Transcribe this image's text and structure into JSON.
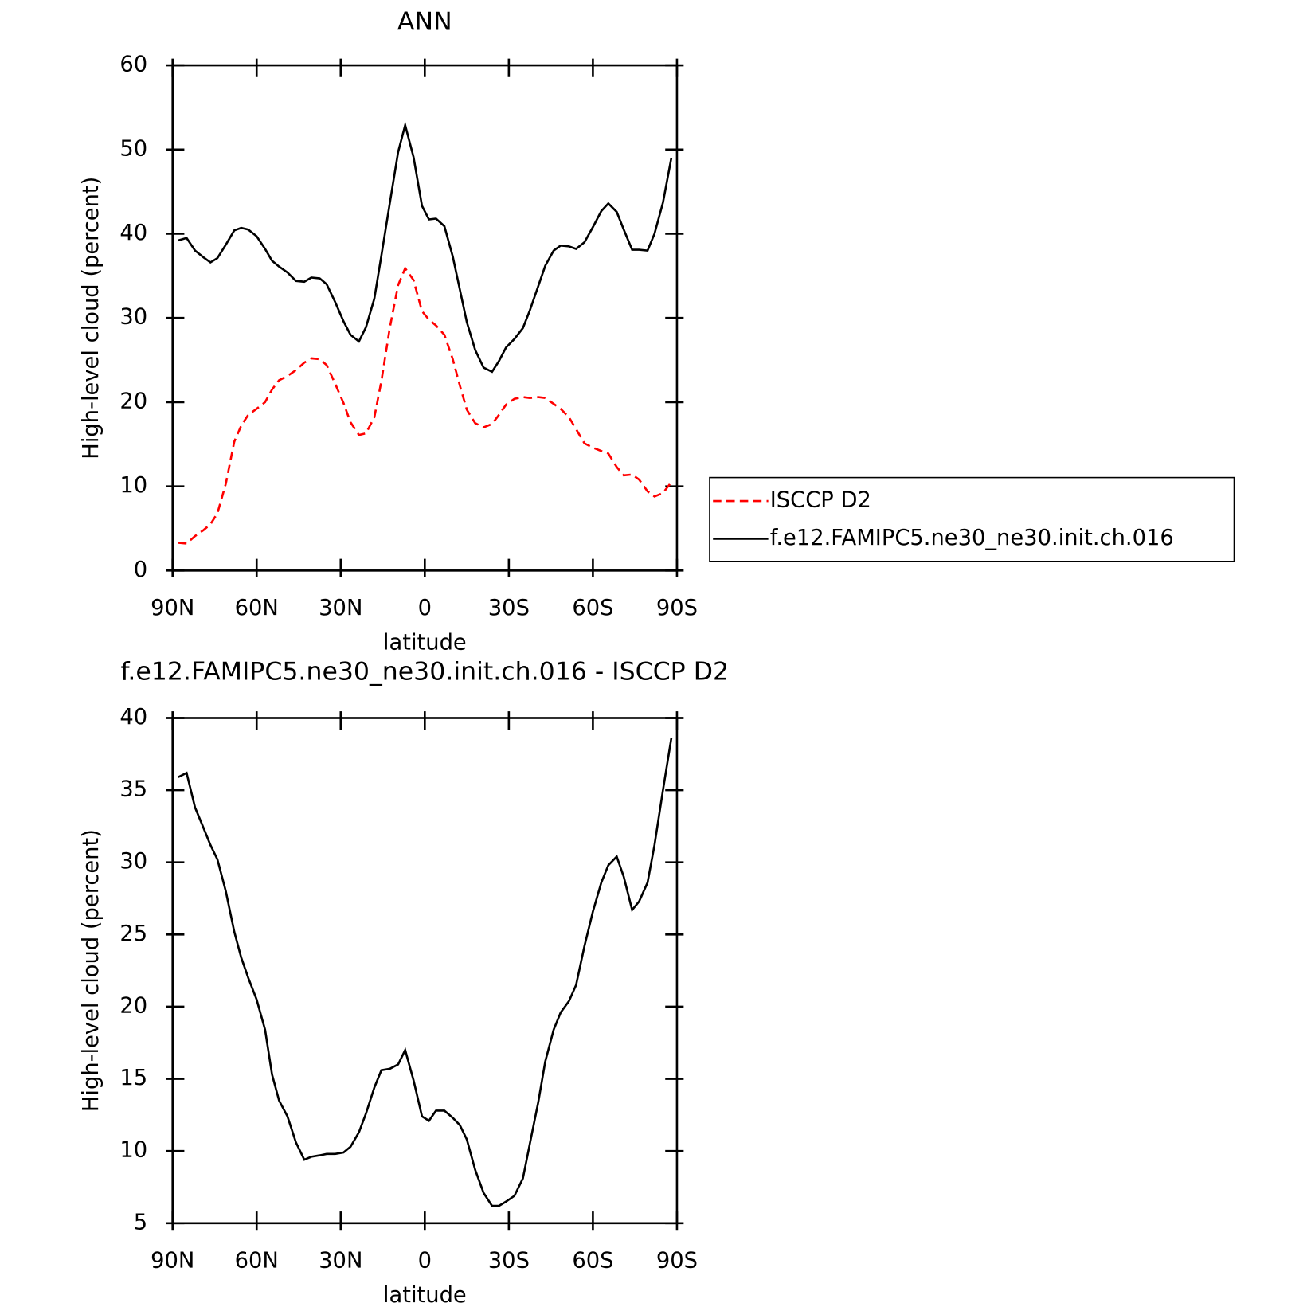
{
  "chart_data": [
    {
      "type": "line",
      "title": "ANN",
      "ylabel": "High-level cloud (percent)",
      "xlabel": "latitude",
      "x": [
        88,
        85,
        82,
        79,
        76.5,
        74,
        71,
        68,
        65.5,
        63,
        60,
        57,
        54.5,
        52,
        49,
        46,
        43,
        40.5,
        37.5,
        35,
        32,
        29,
        26.5,
        23.5,
        21,
        18,
        15.5,
        12.5,
        9.5,
        7,
        4,
        1,
        -1.5,
        -4,
        -7,
        -10,
        -12.5,
        -15,
        -18,
        -21,
        -24,
        -26.5,
        -29,
        -32,
        -35,
        -37.5,
        -40.5,
        -43,
        -46,
        -48.5,
        -51.5,
        -54,
        -57,
        -60,
        -63,
        -65.5,
        -68.5,
        -71,
        -74,
        -76.5,
        -79.5,
        -82,
        -85,
        -88
      ],
      "series": [
        {
          "name": "ISCCP D2",
          "color": "#ff0000",
          "dashed": true,
          "values": [
            3.3,
            3.2,
            4.1,
            4.8,
            5.5,
            6.8,
            10.3,
            15.3,
            17.2,
            18.5,
            19.2,
            20.0,
            21.5,
            22.6,
            23.1,
            23.8,
            24.7,
            25.2,
            25.1,
            24.4,
            22.2,
            19.9,
            17.6,
            16.1,
            16.3,
            18.2,
            22.5,
            28.8,
            33.9,
            35.9,
            34.5,
            30.8,
            29.8,
            29.1,
            28.0,
            25.1,
            22.0,
            19.1,
            17.5,
            17.0,
            17.4,
            18.5,
            19.7,
            20.4,
            20.6,
            20.5,
            20.6,
            20.5,
            19.8,
            19.2,
            18.2,
            16.8,
            15.1,
            14.6,
            14.2,
            13.9,
            12.3,
            11.3,
            11.4,
            10.8,
            9.4,
            8.8,
            9.2,
            10.5
          ]
        },
        {
          "name": "f.e12.FAMIPC5.ne30_ne30.init.ch.016",
          "color": "#000000",
          "dashed": false,
          "values": [
            39.2,
            39.5,
            38.0,
            37.2,
            36.6,
            37.1,
            38.7,
            40.4,
            40.7,
            40.5,
            39.7,
            38.2,
            36.8,
            36.1,
            35.4,
            34.4,
            34.3,
            34.8,
            34.7,
            34.0,
            31.9,
            29.6,
            28.0,
            27.2,
            28.9,
            32.3,
            37.4,
            43.6,
            49.7,
            52.9,
            49.1,
            43.3,
            41.7,
            41.8,
            40.9,
            37.3,
            33.4,
            29.5,
            26.2,
            24.1,
            23.6,
            24.9,
            26.5,
            27.5,
            28.8,
            30.9,
            33.8,
            36.2,
            38.0,
            38.6,
            38.5,
            38.2,
            39.0,
            40.8,
            42.7,
            43.6,
            42.6,
            40.5,
            38.1,
            38.1,
            38.0,
            40.0,
            43.7,
            49.0
          ]
        }
      ],
      "xlim": [
        90,
        -90
      ],
      "xticks": [
        {
          "value": 90,
          "label": "90N"
        },
        {
          "value": 60,
          "label": "60N"
        },
        {
          "value": 30,
          "label": "30N"
        },
        0,
        {
          "value": -30,
          "label": "30S"
        },
        {
          "value": -60,
          "label": "60S"
        },
        {
          "value": -90,
          "label": "90S"
        }
      ],
      "ylim": [
        0,
        60
      ],
      "yticks": [
        0,
        10,
        20,
        30,
        40,
        50,
        60
      ],
      "legend": "outside-right"
    },
    {
      "type": "line",
      "title": "f.e12.FAMIPC5.ne30_ne30.init.ch.016 - ISCCP D2",
      "ylabel": "High-level cloud (percent)",
      "xlabel": "latitude",
      "x": [
        88,
        85,
        82,
        79,
        76.5,
        74,
        71,
        68,
        65.5,
        63,
        60,
        57,
        54.5,
        52,
        49,
        46,
        43,
        40.5,
        37.5,
        35,
        32,
        29,
        26.5,
        23.5,
        21,
        18,
        15.5,
        12.5,
        9.5,
        7,
        4,
        1,
        -1.5,
        -4,
        -7,
        -10,
        -12.5,
        -15,
        -18,
        -21,
        -24,
        -26.5,
        -29,
        -32,
        -35,
        -37.5,
        -40.5,
        -43,
        -46,
        -48.5,
        -51.5,
        -54,
        -57,
        -60,
        -63,
        -65.5,
        -68.5,
        -71,
        -74,
        -76.5,
        -79.5,
        -82,
        -85,
        -88
      ],
      "color": "#000000",
      "values": [
        35.9,
        36.2,
        33.8,
        32.4,
        31.2,
        30.2,
        28.0,
        25.2,
        23.4,
        22.0,
        20.5,
        18.4,
        15.3,
        13.5,
        12.4,
        10.6,
        9.4,
        9.6,
        9.7,
        9.8,
        9.8,
        9.9,
        10.3,
        11.3,
        12.6,
        14.4,
        15.6,
        15.7,
        16.0,
        17.0,
        14.9,
        12.4,
        12.1,
        12.8,
        12.8,
        12.3,
        11.8,
        10.8,
        8.7,
        7.1,
        6.2,
        6.2,
        6.5,
        6.9,
        8.1,
        10.5,
        13.4,
        16.2,
        18.4,
        19.6,
        20.4,
        21.5,
        24.2,
        26.6,
        28.6,
        29.8,
        30.4,
        29.0,
        26.7,
        27.3,
        28.6,
        31.2,
        35.0,
        38.6
      ],
      "xlim": [
        90,
        -90
      ],
      "xticks": [
        {
          "value": 90,
          "label": "90N"
        },
        {
          "value": 60,
          "label": "60N"
        },
        {
          "value": 30,
          "label": "30N"
        },
        0,
        {
          "value": -30,
          "label": "30S"
        },
        {
          "value": -60,
          "label": "60S"
        },
        {
          "value": -90,
          "label": "90S"
        }
      ],
      "ylim": [
        5,
        40
      ],
      "yticks": [
        5,
        10,
        15,
        20,
        25,
        30,
        35,
        40
      ]
    }
  ]
}
